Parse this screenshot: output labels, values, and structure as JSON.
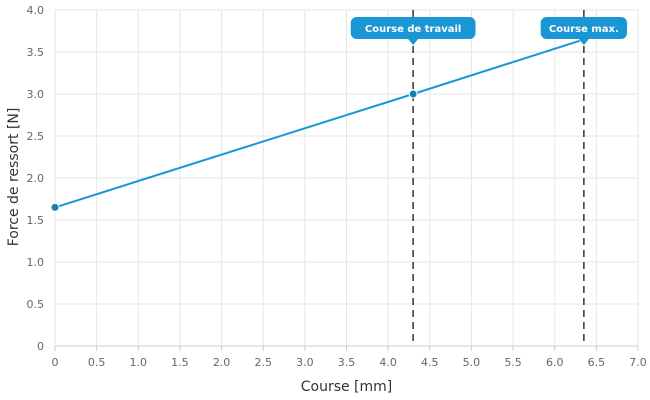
{
  "chart_data": {
    "type": "line",
    "xlabel": "Course [mm]",
    "ylabel": "Force de ressort [N]",
    "xlim": [
      0,
      7
    ],
    "ylim": [
      0,
      4
    ],
    "x_ticks": [
      "0",
      "0.5",
      "1.0",
      "1.5",
      "2.0",
      "2.5",
      "3.0",
      "3.5",
      "4.0",
      "4.5",
      "5.0",
      "5.5",
      "6.0",
      "6.5",
      "7.0"
    ],
    "y_ticks": [
      "0",
      "0.5",
      "1.0",
      "1.5",
      "2.0",
      "2.5",
      "3.0",
      "3.5",
      "4.0"
    ],
    "grid": true,
    "series": [
      {
        "color": "#1a96d4",
        "points": [
          {
            "x": 0,
            "y": 1.65
          },
          {
            "x": 4.3,
            "y": 3.0
          },
          {
            "x": 6.35,
            "y": 3.65
          }
        ]
      }
    ],
    "annotations": [
      {
        "label": "Course de travail",
        "x": 4.3,
        "y": 3.0,
        "color": "#1a96d4"
      },
      {
        "label": "Course max.",
        "x": 6.35,
        "y": 3.65,
        "color": "#1a96d4"
      }
    ]
  }
}
